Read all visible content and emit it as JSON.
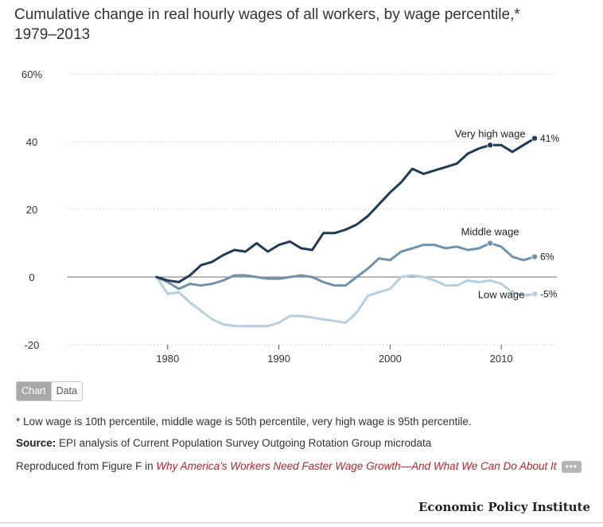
{
  "title_line1": "Cumulative change in real hourly wages of all workers, by wage percentile,*",
  "title_line2": "1979–2013",
  "chart_data": {
    "type": "line",
    "x": [
      1979,
      1980,
      1981,
      1982,
      1983,
      1984,
      1985,
      1986,
      1987,
      1988,
      1989,
      1990,
      1991,
      1992,
      1993,
      1994,
      1995,
      1996,
      1997,
      1998,
      1999,
      2000,
      2001,
      2002,
      2003,
      2004,
      2005,
      2006,
      2007,
      2008,
      2009,
      2010,
      2011,
      2012,
      2013
    ],
    "xlim": [
      1971,
      2015
    ],
    "ylim": [
      -20,
      60
    ],
    "yticks": [
      -20,
      0,
      20,
      40,
      60
    ],
    "ytick_labels": [
      "-20",
      "0",
      "20",
      "40",
      "60%"
    ],
    "xticks": [
      1980,
      1990,
      2000,
      2010
    ],
    "xtick_labels": [
      "1980",
      "1990",
      "2000",
      "2010"
    ],
    "grid": true,
    "series": [
      {
        "name": "Very high wage",
        "color": "#1f3b57",
        "end_label": "41%",
        "values": [
          0,
          -1.0,
          -1.5,
          0.5,
          3.5,
          4.5,
          6.5,
          8.0,
          7.5,
          10.0,
          7.5,
          9.5,
          10.5,
          8.5,
          8.0,
          13.0,
          13.0,
          14.0,
          15.5,
          18.0,
          21.5,
          25.0,
          28.0,
          32.0,
          30.5,
          31.5,
          32.5,
          33.5,
          36.5,
          38.0,
          39.0,
          39.0,
          37.0,
          39.0,
          41.0
        ]
      },
      {
        "name": "Middle wage",
        "color": "#6f93ad",
        "end_label": "6%",
        "values": [
          0,
          -1.5,
          -3.5,
          -2.0,
          -2.5,
          -2.0,
          -1.0,
          0.5,
          0.5,
          0,
          -0.5,
          -0.5,
          0,
          0.5,
          0,
          -1.5,
          -2.5,
          -2.5,
          0,
          2.5,
          5.5,
          5.0,
          7.5,
          8.5,
          9.5,
          9.5,
          8.5,
          9.0,
          8.0,
          8.5,
          10.0,
          9.0,
          6.0,
          5.0,
          6.0
        ]
      },
      {
        "name": "Low wage",
        "color": "#b5cfe3",
        "end_label": "-5%",
        "values": [
          0,
          -5.0,
          -4.5,
          -7.5,
          -10.0,
          -12.5,
          -14.0,
          -14.5,
          -14.5,
          -14.5,
          -14.5,
          -13.5,
          -11.5,
          -11.5,
          -12.0,
          -12.5,
          -13.0,
          -13.5,
          -10.5,
          -5.5,
          -4.5,
          -3.5,
          0,
          0.5,
          0,
          -1.0,
          -2.5,
          -2.5,
          -1.0,
          -1.5,
          -1.0,
          -2.0,
          -4.5,
          -5.5,
          -5.0
        ]
      }
    ]
  },
  "tabs": {
    "chart": "Chart",
    "data": "Data"
  },
  "footnote": "* Low wage is 10th percentile, middle wage is 50th percentile, very high wage is 95th percentile.",
  "source_label": "Source:",
  "source_text": " EPI analysis of Current Population Survey Outgoing Rotation Group microdata",
  "reproduced_prefix": "Reproduced from Figure F in ",
  "reproduced_link": "Why America’s Workers Need Faster Wage Growth—And What We Can Do About It",
  "more_label": "•••",
  "brand": "Economic Policy Institute"
}
